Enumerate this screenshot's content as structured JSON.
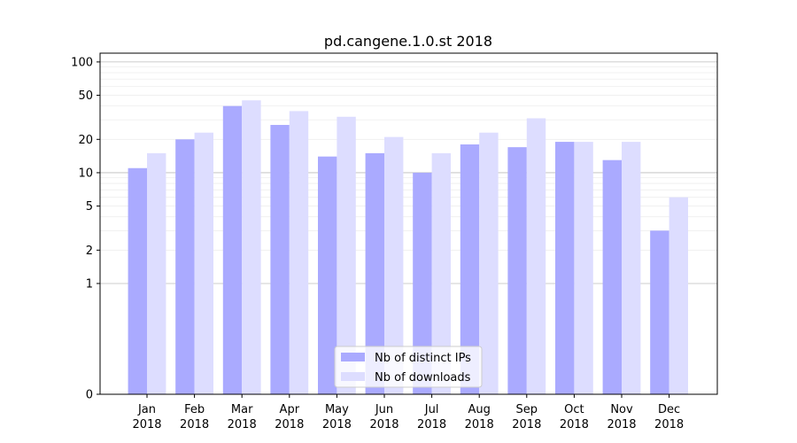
{
  "chart_data": {
    "type": "bar",
    "title": "pd.cangene.1.0.st 2018",
    "xlabel": "",
    "ylabel": "",
    "y_scale": "symlog",
    "ylim": [
      0,
      120
    ],
    "y_ticks": [
      {
        "value": 0,
        "label": "0"
      },
      {
        "value": 1,
        "label": "1"
      },
      {
        "value": 2,
        "label": "2"
      },
      {
        "value": 5,
        "label": "5"
      },
      {
        "value": 10,
        "label": "10"
      },
      {
        "value": 20,
        "label": "20"
      },
      {
        "value": 50,
        "label": "50"
      },
      {
        "value": 100,
        "label": "100"
      }
    ],
    "categories": [
      {
        "month": "Jan",
        "year": "2018"
      },
      {
        "month": "Feb",
        "year": "2018"
      },
      {
        "month": "Mar",
        "year": "2018"
      },
      {
        "month": "Apr",
        "year": "2018"
      },
      {
        "month": "May",
        "year": "2018"
      },
      {
        "month": "Jun",
        "year": "2018"
      },
      {
        "month": "Jul",
        "year": "2018"
      },
      {
        "month": "Aug",
        "year": "2018"
      },
      {
        "month": "Sep",
        "year": "2018"
      },
      {
        "month": "Oct",
        "year": "2018"
      },
      {
        "month": "Nov",
        "year": "2018"
      },
      {
        "month": "Dec",
        "year": "2018"
      }
    ],
    "series": [
      {
        "name": "Nb of distinct IPs",
        "color": "#aaaaff",
        "values": [
          11,
          20,
          40,
          27,
          14,
          15,
          10,
          18,
          17,
          19,
          13,
          3
        ]
      },
      {
        "name": "Nb of downloads",
        "color": "#ddddff",
        "values": [
          15,
          23,
          45,
          36,
          32,
          21,
          15,
          23,
          31,
          19,
          19,
          6
        ]
      }
    ],
    "legend": {
      "position": "bottom-center"
    },
    "grid": true
  }
}
